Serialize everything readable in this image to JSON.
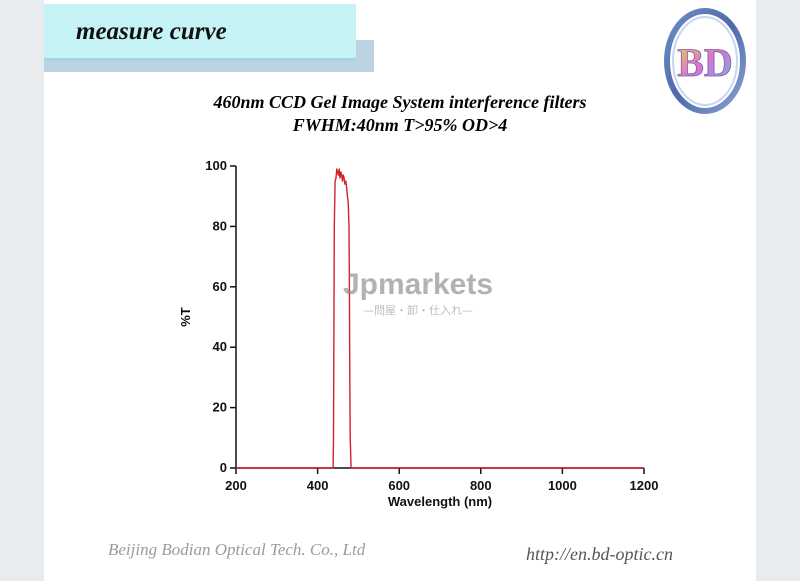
{
  "header": {
    "title": "measure curve"
  },
  "logo": {
    "letters": "BD",
    "icon": "bd-optic-logo"
  },
  "chart_data": {
    "type": "line",
    "title_line1": "460nm CCD Gel Image System interference filters",
    "title_line2": "FWHM:40nm T>95%  OD>4",
    "xlabel": "Wavelength (nm)",
    "ylabel": "%T",
    "xlim": [
      200,
      1200
    ],
    "ylim": [
      0,
      100
    ],
    "xticks": [
      200,
      400,
      600,
      800,
      1000,
      1200
    ],
    "yticks": [
      0,
      20,
      40,
      60,
      80,
      100
    ],
    "grid": false,
    "series": [
      {
        "color": "#d42027",
        "x": [
          200,
          438,
          439,
          440,
          441,
          443,
          445,
          447,
          449,
          451,
          453,
          455,
          457,
          459,
          461,
          463,
          465,
          467,
          469,
          471,
          473,
          475,
          477,
          478,
          479,
          480,
          482,
          1200
        ],
        "y": [
          0,
          0,
          10,
          45,
          80,
          95,
          96,
          99,
          98,
          97,
          99,
          96,
          98,
          97,
          95,
          97,
          96,
          94,
          95,
          93,
          90,
          88,
          80,
          60,
          30,
          10,
          0,
          0
        ]
      }
    ]
  },
  "watermark": {
    "brand": "Jpmarkets",
    "tagline": "—問屋・卸・仕入れ—",
    "accent": "#e7618e"
  },
  "footer": {
    "company": "Beijing Bodian Optical Tech. Co., Ltd",
    "url": "http://en.bd-optic.cn"
  }
}
